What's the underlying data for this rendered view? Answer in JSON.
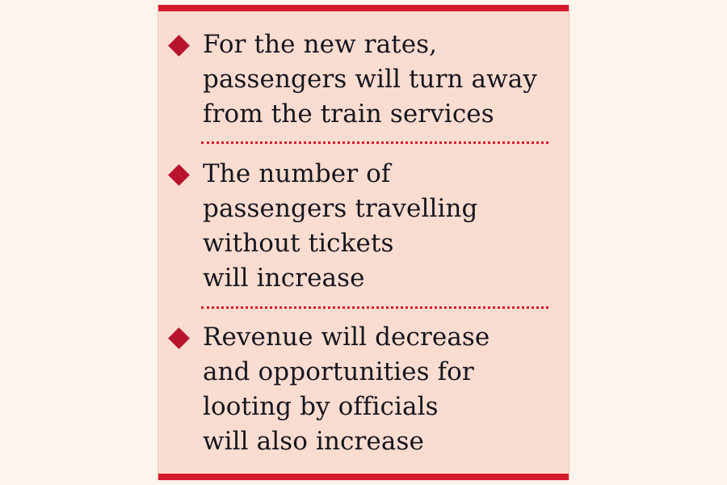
{
  "panel": {
    "items": [
      {
        "text": "For the new rates,\npassengers will turn away\nfrom the train services"
      },
      {
        "text": "The number of\npassengers travelling\nwithout tickets\nwill increase"
      },
      {
        "text": "Revenue will decrease\nand opportunities for\nlooting by officials\nwill also increase"
      }
    ],
    "colors": {
      "page_background": "#fdf4ec",
      "panel_background": "#fbdcd0",
      "accent_red": "#d5192f",
      "bullet_red": "#b8142e",
      "text_color": "#15161d"
    },
    "icons": {
      "bullet": "diamond-bullet-icon"
    }
  }
}
